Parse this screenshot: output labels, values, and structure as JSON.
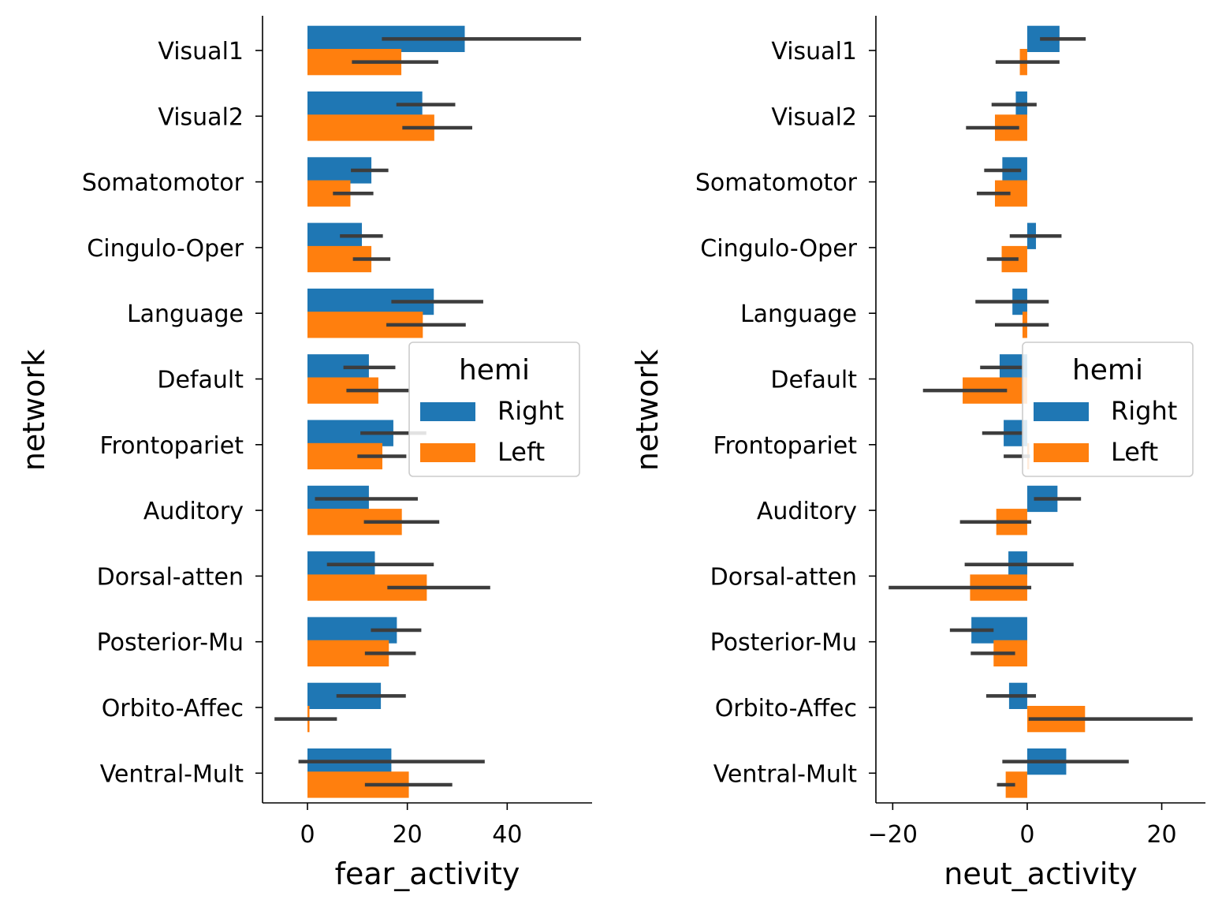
{
  "chart_data": [
    {
      "type": "bar",
      "orientation": "horizontal",
      "categories": [
        "Visual1",
        "Visual2",
        "Somatomotor",
        "Cingulo-Oper",
        "Language",
        "Default",
        "Frontopariet",
        "Auditory",
        "Dorsal-atten",
        "Posterior-Mu",
        "Orbito-Affec",
        "Ventral-Mult"
      ],
      "ylabel": "network",
      "xlabel": "fear_activity",
      "xlim": [
        -9,
        57
      ],
      "xticks": [
        0,
        20,
        40
      ],
      "xtick_labels": [
        "0",
        "20",
        "40"
      ],
      "legend": {
        "title": "hemi",
        "placement": "center-right"
      },
      "series": [
        {
          "name": "Right",
          "color": "#1f77b4",
          "values": [
            31.5,
            23.0,
            12.8,
            10.9,
            25.3,
            12.3,
            17.2,
            12.3,
            13.5,
            17.9,
            14.7,
            16.8
          ],
          "ci_low": [
            14.9,
            17.8,
            8.7,
            6.5,
            16.8,
            7.2,
            10.6,
            1.5,
            3.9,
            12.7,
            5.8,
            -1.8
          ],
          "ci_high": [
            54.8,
            29.6,
            16.2,
            15.1,
            35.2,
            17.6,
            23.8,
            22.1,
            25.3,
            22.8,
            19.7,
            35.5
          ]
        },
        {
          "name": "Left",
          "color": "#ff7f0e",
          "values": [
            18.8,
            25.4,
            8.6,
            12.8,
            23.1,
            14.2,
            15.0,
            18.9,
            23.9,
            16.3,
            0.4,
            20.3
          ],
          "ci_low": [
            8.9,
            19.0,
            5.1,
            9.1,
            15.8,
            7.8,
            10.0,
            11.3,
            16.0,
            11.5,
            -6.6,
            11.5
          ],
          "ci_high": [
            26.2,
            33.0,
            13.2,
            16.6,
            31.7,
            20.5,
            19.8,
            26.4,
            36.6,
            21.7,
            5.9,
            29.0
          ]
        }
      ]
    },
    {
      "type": "bar",
      "orientation": "horizontal",
      "categories": [
        "Visual1",
        "Visual2",
        "Somatomotor",
        "Cingulo-Oper",
        "Language",
        "Default",
        "Frontopariet",
        "Auditory",
        "Dorsal-atten",
        "Posterior-Mu",
        "Orbito-Affec",
        "Ventral-Mult"
      ],
      "ylabel": "network",
      "xlabel": "neut_activity",
      "xlim": [
        -22.5,
        26.5
      ],
      "xticks": [
        -20,
        0,
        20
      ],
      "xtick_labels": [
        "−20",
        "0",
        "20"
      ],
      "legend": {
        "title": "hemi",
        "placement": "center-right"
      },
      "series": [
        {
          "name": "Right",
          "color": "#1f77b4",
          "values": [
            4.8,
            -1.7,
            -3.7,
            1.3,
            -2.2,
            -4.1,
            -3.5,
            4.5,
            -2.8,
            -8.3,
            -2.7,
            5.8
          ],
          "ci_low": [
            1.9,
            -5.3,
            -6.4,
            -2.6,
            -7.7,
            -7.0,
            -6.7,
            1.0,
            -9.3,
            -11.5,
            -6.1,
            -3.7
          ],
          "ci_high": [
            8.7,
            1.4,
            -0.9,
            5.1,
            3.2,
            -0.7,
            -0.6,
            8.0,
            6.9,
            -5.0,
            1.3,
            15.1
          ]
        },
        {
          "name": "Left",
          "color": "#ff7f0e",
          "values": [
            -1.1,
            -4.8,
            -4.8,
            -3.8,
            -0.7,
            -9.6,
            0.3,
            -4.6,
            -8.5,
            -5.0,
            8.6,
            -3.2
          ],
          "ci_low": [
            -4.7,
            -9.1,
            -7.5,
            -6.0,
            -4.8,
            -15.5,
            -3.5,
            -10.0,
            -20.6,
            -8.4,
            0.2,
            -4.5
          ],
          "ci_high": [
            4.8,
            -1.2,
            -2.5,
            -1.3,
            3.2,
            -3.0,
            0.4,
            0.6,
            0.6,
            -1.8,
            24.6,
            -1.8
          ]
        }
      ]
    }
  ]
}
